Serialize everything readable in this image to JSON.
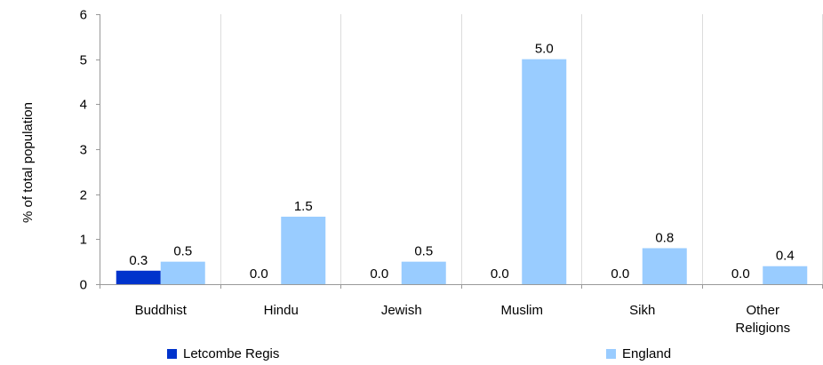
{
  "chart_data": {
    "type": "bar",
    "title": "",
    "xlabel": "",
    "ylabel": "% of total population",
    "ylim": [
      0,
      6
    ],
    "yticks": [
      "0",
      "1",
      "2",
      "3",
      "4",
      "5",
      "6"
    ],
    "categories": [
      "Buddhist",
      "Hindu",
      "Jewish",
      "Muslim",
      "Sikh",
      "Other Religions"
    ],
    "category_lines": [
      [
        "Buddhist"
      ],
      [
        "Hindu"
      ],
      [
        "Jewish"
      ],
      [
        "Muslim"
      ],
      [
        "Sikh"
      ],
      [
        "Other",
        "Religions"
      ]
    ],
    "series": [
      {
        "name": "Letcombe Regis",
        "color": "#0033cc",
        "values": [
          0.3,
          0.0,
          0.0,
          0.0,
          0.0,
          0.0
        ],
        "labels": [
          "0.3",
          "0.0",
          "0.0",
          "0.0",
          "0.0",
          "0.0"
        ]
      },
      {
        "name": "England",
        "color": "#99ccff",
        "values": [
          0.5,
          1.5,
          0.5,
          5.0,
          0.8,
          0.4
        ],
        "labels": [
          "0.5",
          "1.5",
          "0.5",
          "5.0",
          "0.8",
          "0.4"
        ]
      }
    ],
    "grid": "vertical",
    "legend": "bottom"
  }
}
